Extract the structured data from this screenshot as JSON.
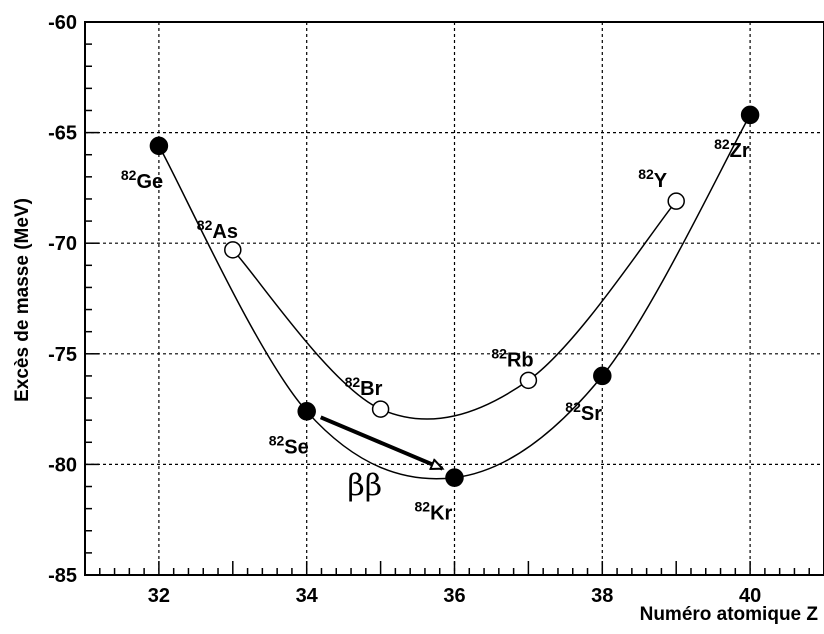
{
  "chart_data": {
    "type": "scatter",
    "title": "",
    "xlabel": "Numéro atomique Z",
    "ylabel": "Excès de masse (MeV)",
    "xlim": [
      31.0,
      41.0
    ],
    "ylim": [
      -85,
      -60
    ],
    "x_ticks": [
      32,
      34,
      36,
      38,
      40
    ],
    "y_ticks": [
      -85,
      -80,
      -75,
      -70,
      -65,
      -60
    ],
    "grid": true,
    "series": [
      {
        "marker": "filled",
        "points": [
          {
            "z": 32,
            "y": -65.6,
            "sup": "82",
            "sym": "Ge"
          },
          {
            "z": 34,
            "y": -77.6,
            "sup": "82",
            "sym": "Se"
          },
          {
            "z": 36,
            "y": -80.6,
            "sup": "82",
            "sym": "Kr"
          },
          {
            "z": 38,
            "y": -76.0,
            "sup": "82",
            "sym": "Sr"
          },
          {
            "z": 40,
            "y": -64.2,
            "sup": "82",
            "sym": "Zr"
          }
        ]
      },
      {
        "marker": "open",
        "points": [
          {
            "z": 33,
            "y": -70.3,
            "sup": "82",
            "sym": "As"
          },
          {
            "z": 35,
            "y": -77.5,
            "sup": "82",
            "sym": "Br"
          },
          {
            "z": 37,
            "y": -76.2,
            "sup": "82",
            "sym": "Rb"
          },
          {
            "z": 39,
            "y": -68.1,
            "sup": "82",
            "sym": "Y"
          }
        ]
      }
    ],
    "annotation": {
      "text": "ββ",
      "arrow_from": {
        "z": 34,
        "y": -77.6
      },
      "arrow_to": {
        "z": 36,
        "y": -80.6
      }
    }
  }
}
